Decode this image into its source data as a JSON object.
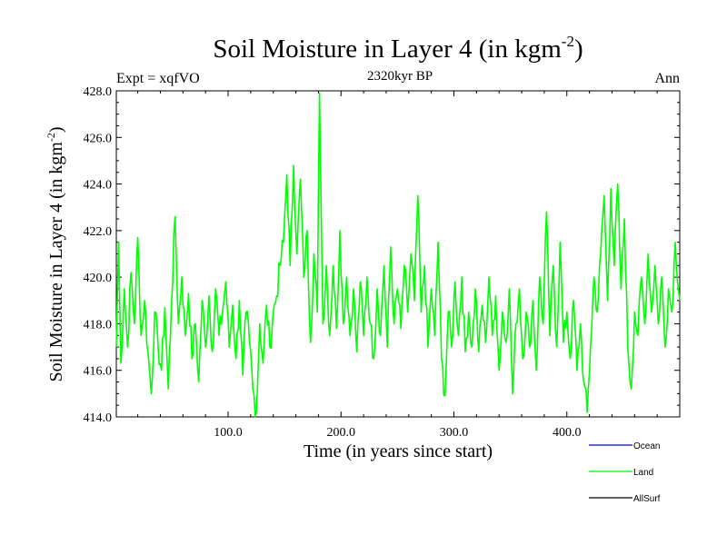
{
  "chart_data": {
    "type": "line",
    "title": "Soil Moisture in Layer 4 (in kgm",
    "title_sup": "-2",
    "title_close": ")",
    "subtitle": "2320kyr BP",
    "left_label": "Expt = xqfVO",
    "right_label": "Ann",
    "xlabel": "Time (in years since start)",
    "ylabel": "Soil Moisture in Layer 4 (in kgm",
    "ylabel_sup": "-2",
    "ylabel_close": ")",
    "xlim": [
      1,
      500
    ],
    "ylim": [
      414,
      428
    ],
    "xticks": [
      100,
      200,
      300,
      400
    ],
    "xtick_labels": [
      "100.0",
      "200.0",
      "300.0",
      "400.0"
    ],
    "yticks": [
      414,
      416,
      418,
      420,
      422,
      424,
      426,
      428
    ],
    "ytick_labels": [
      "414.0",
      "416.0",
      "418.0",
      "420.0",
      "422.0",
      "424.0",
      "426.0",
      "428.0"
    ],
    "legend": [
      {
        "label": "Ocean",
        "color": "#0000ff"
      },
      {
        "label": "Land",
        "color": "#00ff00"
      },
      {
        "label": "AllSurf",
        "color": "#000000"
      }
    ],
    "series": [
      {
        "name": "Land",
        "color": "#00ff00",
        "anchors": [
          [
            1,
            417.0
          ],
          [
            3,
            421.5
          ],
          [
            5,
            416.3
          ],
          [
            8,
            419.5
          ],
          [
            11,
            417.0
          ],
          [
            14,
            420.2
          ],
          [
            17,
            418.0
          ],
          [
            20,
            421.7
          ],
          [
            23,
            417.5
          ],
          [
            26,
            419.0
          ],
          [
            29,
            416.8
          ],
          [
            32,
            415.0
          ],
          [
            35,
            418.5
          ],
          [
            38,
            417.0
          ],
          [
            41,
            416.0
          ],
          [
            44,
            418.7
          ],
          [
            47,
            415.2
          ],
          [
            50,
            419.0
          ],
          [
            53,
            422.6
          ],
          [
            56,
            418.0
          ],
          [
            59,
            420.0
          ],
          [
            62,
            417.5
          ],
          [
            65,
            419.3
          ],
          [
            68,
            416.5
          ],
          [
            71,
            418.0
          ],
          [
            74,
            415.5
          ],
          [
            77,
            419.0
          ],
          [
            80,
            417.0
          ],
          [
            83,
            419.2
          ],
          [
            86,
            416.8
          ],
          [
            89,
            419.5
          ],
          [
            92,
            417.5
          ],
          [
            95,
            418.5
          ],
          [
            98,
            419.8
          ],
          [
            101,
            417.0
          ],
          [
            104,
            418.8
          ],
          [
            107,
            416.5
          ],
          [
            110,
            419.0
          ],
          [
            113,
            415.8
          ],
          [
            116,
            418.5
          ],
          [
            119,
            417.2
          ],
          [
            122,
            415.2
          ],
          [
            125,
            414.2
          ],
          [
            128,
            418.0
          ],
          [
            131,
            416.3
          ],
          [
            134,
            418.8
          ],
          [
            137,
            417.0
          ],
          [
            140,
            418.5
          ],
          [
            143,
            419.2
          ],
          [
            146,
            420.5
          ],
          [
            149,
            421.5
          ],
          [
            152,
            424.4
          ],
          [
            155,
            420.5
          ],
          [
            158,
            424.8
          ],
          [
            161,
            421.0
          ],
          [
            164,
            424.2
          ],
          [
            167,
            420.0
          ],
          [
            170,
            422.0
          ],
          [
            173,
            417.2
          ],
          [
            176,
            421.0
          ],
          [
            179,
            418.5
          ],
          [
            181,
            427.9
          ],
          [
            184,
            418.0
          ],
          [
            187,
            420.5
          ],
          [
            190,
            417.5
          ],
          [
            193,
            420.5
          ],
          [
            196,
            417.8
          ],
          [
            199,
            422.0
          ],
          [
            202,
            418.0
          ],
          [
            205,
            420.0
          ],
          [
            208,
            417.5
          ],
          [
            211,
            419.5
          ],
          [
            214,
            416.8
          ],
          [
            217,
            419.8
          ],
          [
            220,
            417.5
          ],
          [
            223,
            420.0
          ],
          [
            226,
            418.0
          ],
          [
            229,
            416.5
          ],
          [
            232,
            419.5
          ],
          [
            235,
            417.5
          ],
          [
            238,
            420.5
          ],
          [
            241,
            417.0
          ],
          [
            244,
            421.3
          ],
          [
            247,
            418.0
          ],
          [
            250,
            419.5
          ],
          [
            253,
            417.8
          ],
          [
            256,
            420.5
          ],
          [
            259,
            418.5
          ],
          [
            262,
            421.0
          ],
          [
            265,
            419.0
          ],
          [
            268,
            423.5
          ],
          [
            271,
            418.5
          ],
          [
            274,
            420.5
          ],
          [
            277,
            417.0
          ],
          [
            280,
            419.5
          ],
          [
            283,
            417.5
          ],
          [
            286,
            421.5
          ],
          [
            289,
            416.5
          ],
          [
            292,
            414.9
          ],
          [
            295,
            418.5
          ],
          [
            298,
            417.0
          ],
          [
            301,
            419.8
          ],
          [
            304,
            417.5
          ],
          [
            307,
            420.0
          ],
          [
            310,
            416.8
          ],
          [
            313,
            418.5
          ],
          [
            316,
            417.0
          ],
          [
            319,
            419.5
          ],
          [
            322,
            416.8
          ],
          [
            325,
            418.8
          ],
          [
            328,
            417.2
          ],
          [
            331,
            420.0
          ],
          [
            334,
            417.5
          ],
          [
            337,
            419.2
          ],
          [
            340,
            416.0
          ],
          [
            343,
            418.5
          ],
          [
            346,
            417.2
          ],
          [
            349,
            419.5
          ],
          [
            352,
            415.0
          ],
          [
            355,
            418.0
          ],
          [
            358,
            419.5
          ],
          [
            361,
            416.5
          ],
          [
            364,
            418.5
          ],
          [
            367,
            417.0
          ],
          [
            370,
            419.0
          ],
          [
            373,
            416.0
          ],
          [
            376,
            420.0
          ],
          [
            379,
            418.0
          ],
          [
            382,
            422.8
          ],
          [
            385,
            417.5
          ],
          [
            388,
            420.5
          ],
          [
            391,
            417.0
          ],
          [
            394,
            421.5
          ],
          [
            397,
            417.2
          ],
          [
            400,
            418.5
          ],
          [
            403,
            416.5
          ],
          [
            406,
            419.0
          ],
          [
            409,
            416.0
          ],
          [
            412,
            418.0
          ],
          [
            415,
            415.5
          ],
          [
            418,
            414.2
          ],
          [
            421,
            417.0
          ],
          [
            424,
            420.0
          ],
          [
            427,
            418.5
          ],
          [
            430,
            421.0
          ],
          [
            433,
            423.5
          ],
          [
            436,
            419.0
          ],
          [
            439,
            423.8
          ],
          [
            442,
            420.5
          ],
          [
            445,
            424.0
          ],
          [
            448,
            419.5
          ],
          [
            451,
            422.5
          ],
          [
            454,
            417.0
          ],
          [
            457,
            415.2
          ],
          [
            460,
            418.5
          ],
          [
            463,
            417.5
          ],
          [
            466,
            420.0
          ],
          [
            469,
            418.0
          ],
          [
            472,
            421.0
          ],
          [
            475,
            418.5
          ],
          [
            478,
            420.5
          ],
          [
            481,
            418.0
          ],
          [
            484,
            420.0
          ],
          [
            487,
            417.0
          ],
          [
            490,
            419.5
          ],
          [
            493,
            418.5
          ],
          [
            496,
            421.5
          ],
          [
            500,
            419.0
          ]
        ]
      }
    ]
  }
}
